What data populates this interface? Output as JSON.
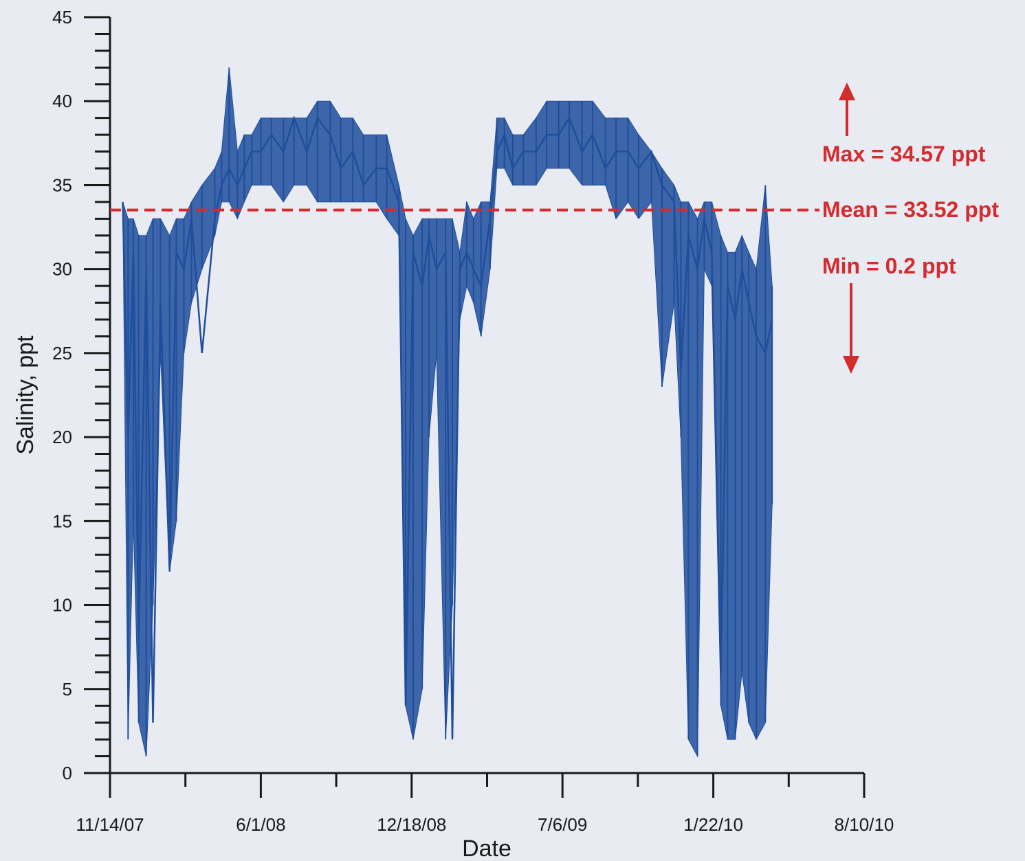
{
  "chart_data": {
    "type": "line",
    "title": "",
    "xlabel": "Date",
    "ylabel": "Salinity, ppt",
    "ylim": [
      0,
      45
    ],
    "xlim": [
      "2007-11-14",
      "2010-08-10"
    ],
    "x_tick_labels": [
      "11/14/07",
      "6/1/08",
      "12/18/08",
      "7/6/09",
      "1/22/10",
      "8/10/10"
    ],
    "y_ticks": [
      0,
      5,
      10,
      15,
      20,
      25,
      30,
      35,
      40,
      45
    ],
    "grid": false,
    "colors": {
      "series": "#1f4e9c",
      "annotation": "#d42b2f",
      "axis": "#1a1a1a"
    },
    "series": [
      {
        "x": [
          "2007-12-01",
          "2007-12-08",
          "2007-12-15",
          "2007-12-22",
          "2008-01-01",
          "2008-01-10",
          "2008-01-20",
          "2008-02-01",
          "2008-02-10",
          "2008-02-20",
          "2008-03-01",
          "2008-03-15",
          "2008-04-01",
          "2008-04-10",
          "2008-04-20",
          "2008-05-01",
          "2008-05-10",
          "2008-05-20",
          "2008-06-01",
          "2008-06-15",
          "2008-07-01",
          "2008-07-15",
          "2008-08-01",
          "2008-08-15",
          "2008-09-01",
          "2008-09-15",
          "2008-10-01",
          "2008-10-15",
          "2008-11-01",
          "2008-11-15",
          "2008-12-01",
          "2008-12-10",
          "2008-12-20",
          "2009-01-01",
          "2009-01-10",
          "2009-01-20",
          "2009-02-01",
          "2009-02-10",
          "2009-02-20",
          "2009-03-01",
          "2009-03-10",
          "2009-03-20",
          "2009-04-01",
          "2009-04-10",
          "2009-04-20",
          "2009-05-01",
          "2009-05-15",
          "2009-06-01",
          "2009-06-15",
          "2009-07-01",
          "2009-07-15",
          "2009-08-01",
          "2009-08-15",
          "2009-09-01",
          "2009-09-15",
          "2009-10-01",
          "2009-10-15",
          "2009-11-01",
          "2009-11-15",
          "2009-12-01",
          "2009-12-10",
          "2009-12-20",
          "2010-01-01",
          "2010-01-10",
          "2010-01-20",
          "2010-02-01",
          "2010-02-10",
          "2010-02-20",
          "2010-03-01",
          "2010-03-10",
          "2010-03-20",
          "2010-04-01",
          "2010-04-10"
        ],
        "y": [
          34,
          20,
          31,
          8,
          30,
          3,
          28,
          12,
          31,
          30,
          33,
          25,
          33,
          35,
          36,
          35,
          36,
          37,
          37,
          38,
          37,
          39,
          37,
          39,
          38,
          36,
          37,
          35,
          36,
          36,
          34,
          4,
          31,
          29,
          32,
          30,
          31,
          2,
          30,
          31,
          30,
          29,
          33,
          37,
          38,
          36,
          37,
          37,
          38,
          38,
          39,
          37,
          38,
          36,
          37,
          37,
          36,
          37,
          35,
          34,
          24,
          32,
          30,
          33,
          31,
          6,
          29,
          27,
          30,
          28,
          26,
          25,
          27
        ],
        "min_envelope": [
          34,
          2,
          15,
          3,
          1,
          10,
          25,
          12,
          15,
          25,
          28,
          30,
          32,
          34,
          34,
          33,
          34,
          35,
          35,
          35,
          34,
          35,
          35,
          34,
          34,
          34,
          34,
          34,
          34,
          33,
          32,
          4,
          2,
          5,
          20,
          25,
          2,
          10,
          27,
          29,
          28,
          26,
          30,
          36,
          36,
          35,
          35,
          35,
          36,
          36,
          36,
          35,
          35,
          35,
          33,
          34,
          33,
          34,
          23,
          28,
          20,
          2,
          1,
          30,
          29,
          4,
          2,
          2,
          6,
          3,
          2,
          3,
          16
        ],
        "max_envelope": [
          34,
          33,
          33,
          32,
          32,
          33,
          33,
          32,
          33,
          33,
          34,
          35,
          36,
          37,
          42,
          37,
          38,
          38,
          39,
          39,
          39,
          39,
          39,
          40,
          40,
          39,
          39,
          38,
          38,
          38,
          35,
          33,
          32,
          33,
          33,
          33,
          33,
          33,
          31,
          34,
          33,
          34,
          34,
          39,
          39,
          38,
          38,
          39,
          40,
          40,
          40,
          40,
          40,
          39,
          39,
          39,
          38,
          37,
          36,
          35,
          34,
          34,
          33,
          34,
          34,
          32,
          31,
          31,
          32,
          31,
          30,
          35,
          29
        ]
      }
    ],
    "annotations": {
      "max": "Max = 34.57 ppt",
      "mean": "Mean = 33.52 ppt",
      "min": "Min = 0.2 ppt",
      "mean_value": 33.52
    }
  }
}
